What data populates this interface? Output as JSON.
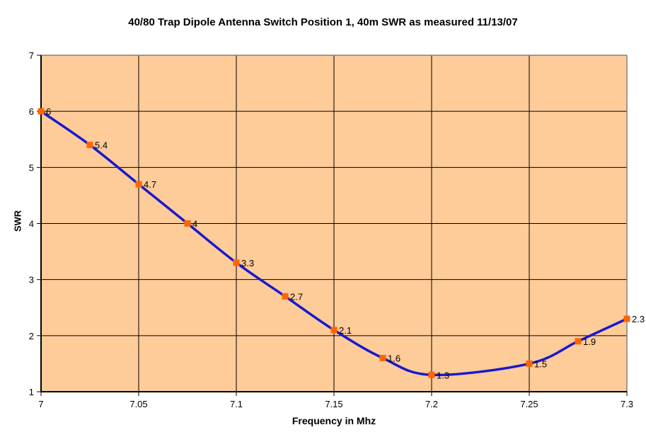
{
  "chart_data": {
    "type": "line",
    "title": "40/80 Trap Dipole Antenna Switch Position 1, 40m SWR as measured 11/13/07",
    "xlabel": "Frequency in Mhz",
    "ylabel": "SWR",
    "x": [
      7.0,
      7.025,
      7.05,
      7.075,
      7.1,
      7.125,
      7.15,
      7.175,
      7.2,
      7.25,
      7.275,
      7.3
    ],
    "y": [
      6.0,
      5.4,
      4.7,
      4.0,
      3.3,
      2.7,
      2.1,
      1.6,
      1.3,
      1.5,
      1.9,
      2.3
    ],
    "point_labels": [
      "6",
      "5.4",
      "4.7",
      "4",
      "3.3",
      "2.7",
      "2.1",
      "1.6",
      "1.3",
      "1.5",
      "1.9",
      "2.3"
    ],
    "xlim": [
      7.0,
      7.3
    ],
    "ylim": [
      1,
      7
    ],
    "x_ticks": [
      7.0,
      7.05,
      7.1,
      7.15,
      7.2,
      7.25,
      7.3
    ],
    "x_tick_labels": [
      "7",
      "7.05",
      "7.1",
      "7.15",
      "7.2",
      "7.25",
      "7.3"
    ],
    "y_ticks": [
      1,
      2,
      3,
      4,
      5,
      6,
      7
    ],
    "y_tick_labels": [
      "1",
      "2",
      "3",
      "4",
      "5",
      "6",
      "7"
    ],
    "grid": true,
    "smoothed": true,
    "legend": "none",
    "marker_shape": "square",
    "colors": {
      "line": "#1818D0",
      "marker": "#FF6600",
      "plot_background": "#FECC99",
      "plot_border": "#808080",
      "axis": "#000000",
      "gridline": "#000000",
      "text": "#000000",
      "page_background": "#FFFFFF"
    }
  }
}
